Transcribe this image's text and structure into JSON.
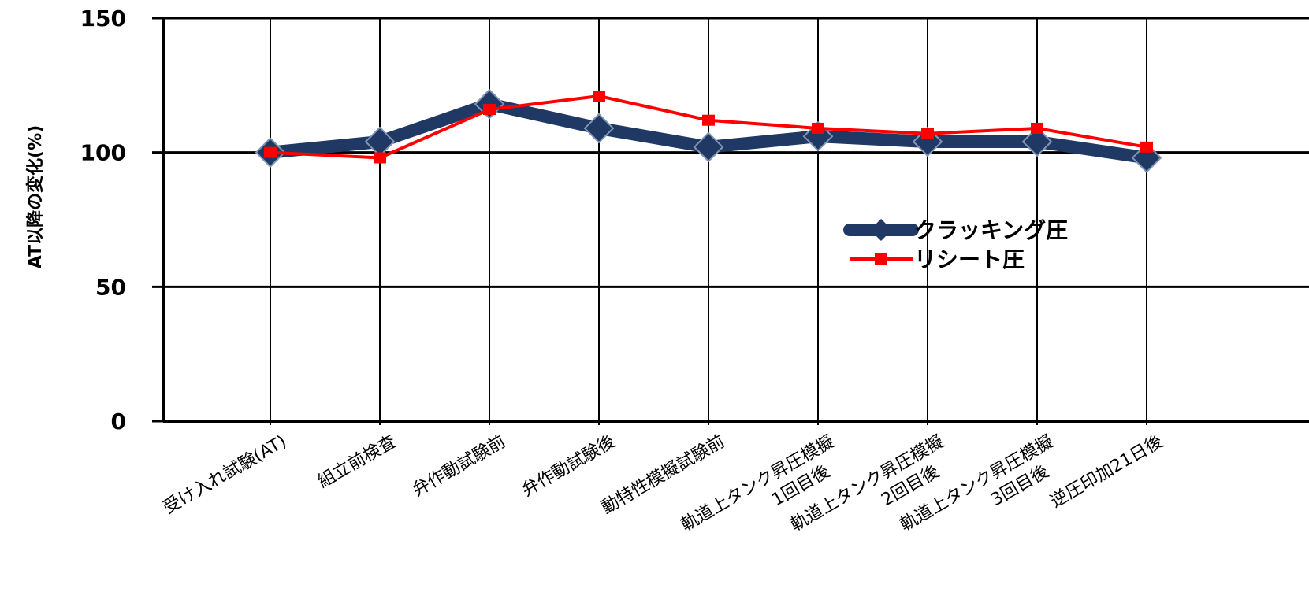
{
  "chart_data": {
    "type": "line",
    "title": "",
    "ylabel": "AT以降の変化(%)",
    "xlabel": "",
    "ylim": [
      0,
      150
    ],
    "yticks": [
      "0",
      "50",
      "100",
      "150"
    ],
    "grid": true,
    "legend_position": "right",
    "categories": [
      "受け入れ試験(AT)",
      "組立前検査",
      "弁作動試験前",
      "弁作動試験後",
      "動特性模擬試験前",
      "軌道上タンク昇圧模擬\n1回目後",
      "軌道上タンク昇圧模擬\n2回目後",
      "軌道上タンク昇圧模擬\n3回目後",
      "逆圧印加21日後"
    ],
    "series": [
      {
        "name": "クラッキング圧",
        "color": "#1f3864",
        "values": [
          100,
          104,
          118,
          109,
          102,
          106,
          104,
          104,
          98
        ]
      },
      {
        "name": "リシート圧",
        "color": "#ff0000",
        "values": [
          100,
          98,
          116,
          121,
          112,
          109,
          107,
          109,
          102
        ]
      }
    ]
  }
}
